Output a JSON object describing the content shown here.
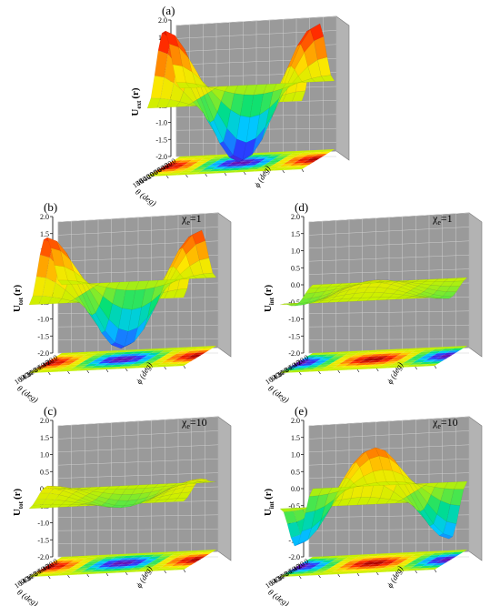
{
  "chart_data": [
    {
      "type": "surface3d",
      "panel_label": "(a)",
      "chi_label": "",
      "zlabel_main": "U",
      "zlabel_sub": "ext",
      "zlabel_r": "(r)",
      "xlabel": "θ (deg)",
      "ylabel": "ϕ (deg)",
      "z_ticks": [
        "2.0",
        "1.5",
        "1.0",
        "0.5",
        "0.0",
        "-0.5",
        "-1.0",
        "-1.5",
        "-2.0"
      ],
      "theta_ticks": [
        "0",
        "20",
        "40",
        "60",
        "80",
        "100",
        "120",
        "140",
        "160",
        "180"
      ],
      "zlim": [
        -2.0,
        2.0
      ],
      "theta_range": [
        0,
        180
      ],
      "phi_range": [
        0,
        360
      ],
      "surface": {
        "amplitude": 2.0,
        "form": "sin^2(theta)*cos(phi)",
        "base": "contour projection at z=-2.0"
      },
      "sheet_z": null
    },
    {
      "type": "surface3d",
      "panel_label": "(b)",
      "chi_label": "χ",
      "chi_sub": "e",
      "chi_value": "=1",
      "zlabel_main": "U",
      "zlabel_sub": "tot",
      "zlabel_r": "(r)",
      "xlabel": "θ (deg)",
      "ylabel": "ϕ (deg)",
      "z_ticks": [
        "2.0",
        "1.5",
        "1.0",
        "0.5",
        "0.0",
        "-0.5",
        "-1.0",
        "-1.5",
        "-2.0"
      ],
      "theta_ticks": [
        "0",
        "20",
        "40",
        "60",
        "80",
        "100",
        "120",
        "140",
        "160"
      ],
      "zlim": [
        -2.0,
        2.0
      ],
      "surface": {
        "amplitude": 1.7,
        "form": "sin^2(theta)*cos(phi)"
      },
      "sheet_z": null
    },
    {
      "type": "surface3d",
      "panel_label": "(d)",
      "chi_label": "χ",
      "chi_sub": "e",
      "chi_value": "=1",
      "zlabel_main": "U",
      "zlabel_sub": "int",
      "zlabel_r": "(r)",
      "xlabel": "θ (deg)",
      "ylabel": "ϕ (deg)",
      "z_ticks": [
        "2.0",
        "1.5",
        "1.0",
        "0.5",
        "0.0",
        "-0.5",
        "-1.0",
        "-1.5",
        "-2.0"
      ],
      "theta_ticks": [
        "0",
        "20",
        "40",
        "60",
        "80",
        "100",
        "120",
        "140",
        "160"
      ],
      "zlim": [
        -2.0,
        2.0
      ],
      "surface": {
        "amplitude": 0.3,
        "form": "-sin^2(theta)*cos(phi)"
      },
      "sheet_z": 0.0
    },
    {
      "type": "surface3d",
      "panel_label": "(c)",
      "chi_label": "χ",
      "chi_sub": "e",
      "chi_value": "=10",
      "zlabel_main": "U",
      "zlabel_sub": "tot",
      "zlabel_r": "(r)",
      "xlabel": "θ (deg)",
      "ylabel": "ϕ (deg)",
      "z_ticks": [
        "2.0",
        "1.5",
        "1.0",
        "0.5",
        "0.0",
        "-0.5",
        "-1.0",
        "-1.5",
        "-2.0"
      ],
      "theta_ticks": [
        "0",
        "20",
        "40",
        "60",
        "80",
        "100",
        "120",
        "140",
        "160"
      ],
      "zlim": [
        -2.0,
        2.0
      ],
      "surface": {
        "amplitude": 0.35,
        "form": "sin^2(theta)*cos(phi)"
      },
      "sheet_z": 0.0
    },
    {
      "type": "surface3d",
      "panel_label": "(e)",
      "chi_label": "χ",
      "chi_sub": "e",
      "chi_value": "=10",
      "zlabel_main": "U",
      "zlabel_sub": "int",
      "zlabel_r": "(r)",
      "xlabel": "θ (deg)",
      "ylabel": "ϕ (deg)",
      "z_ticks": [
        "2.0",
        "1.5",
        "1.0",
        "0.5",
        "0.0",
        "-0.5",
        "-1.0",
        "-1.5",
        "-2.0"
      ],
      "theta_ticks": [
        "0",
        "20",
        "40",
        "60",
        "80",
        "100",
        "120",
        "140",
        "160"
      ],
      "zlim": [
        -2.0,
        2.0
      ],
      "surface": {
        "amplitude": 1.4,
        "form": "-sin^2(theta)*cos(phi)"
      },
      "sheet_z": null
    }
  ],
  "colors": {
    "wall": "#9a9a9a",
    "wall_grid": "#cfcfcf",
    "colormap": [
      "#6a0dad",
      "#2a3cff",
      "#00c8ff",
      "#00e07a",
      "#c6f000",
      "#ffe600",
      "#ff8a00",
      "#ff2a00",
      "#a60000"
    ]
  }
}
